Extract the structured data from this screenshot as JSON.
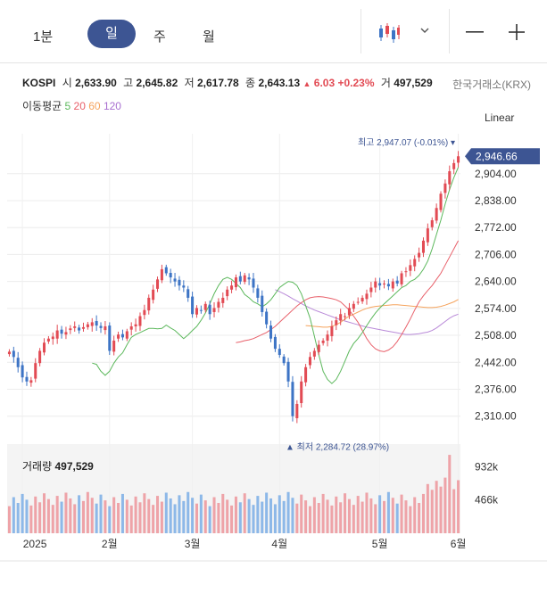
{
  "toolbar": {
    "tabs": [
      "1분",
      "일",
      "주",
      "월"
    ],
    "active_tab": "일",
    "chart_style_icon": "candlestick-icon",
    "dropdown_icon": "chevron-down-icon",
    "zoom_out_icon": "minus-icon",
    "zoom_in_icon": "plus-icon"
  },
  "quote": {
    "symbol": "KOSPI",
    "open_label": "시",
    "open": "2,633.90",
    "high_label": "고",
    "high": "2,645.82",
    "low_label": "저",
    "low": "2,617.78",
    "close_label": "종",
    "close": "2,643.13",
    "change_arrow": "▲",
    "change": "6.03",
    "change_pct": "+0.23%",
    "volume_label": "거",
    "volume": "497,529",
    "exchange": "한국거래소(KRX)"
  },
  "moving_average": {
    "label": "이동평균",
    "periods": [
      {
        "period": "5",
        "color": "#5cb85c"
      },
      {
        "period": "20",
        "color": "#e8606a"
      },
      {
        "period": "60",
        "color": "#f5a35c"
      },
      {
        "period": "120",
        "color": "#a86fd0"
      }
    ]
  },
  "scale_type": "Linear",
  "colors": {
    "up": "#e24b54",
    "down": "#3d74c5",
    "accent": "#3d5593",
    "vol_up": "#eea3a8",
    "vol_down": "#8db8e8"
  },
  "chart_data": {
    "type": "candlestick",
    "ylim": [
      2270,
      2980
    ],
    "y_ticks": [
      "2,904.00",
      "2,838.00",
      "2,772.00",
      "2,706.00",
      "2,640.00",
      "2,574.00",
      "2,508.00",
      "2,442.00",
      "2,376.00",
      "2,310.00"
    ],
    "y_tick_values": [
      2904,
      2838,
      2772,
      2706,
      2640,
      2574,
      2508,
      2442,
      2376,
      2310
    ],
    "x_labels": [
      "2025",
      "2월",
      "3월",
      "4월",
      "5월",
      "6월"
    ],
    "x_label_index": [
      3,
      23,
      42,
      62,
      85,
      103
    ],
    "last_price_label": "2,946.66",
    "last_price": 2946.66,
    "max_label": "최고 2,947.07 (-0.01%)",
    "max_value": 2947.07,
    "min_label": "최저 2,284.72 (28.97%)",
    "min_value": 2284.72,
    "close": [
      2468,
      2455,
      2430,
      2405,
      2395,
      2398,
      2440,
      2470,
      2490,
      2500,
      2505,
      2520,
      2512,
      2516,
      2525,
      2530,
      2520,
      2528,
      2535,
      2540,
      2532,
      2526,
      2530,
      2470,
      2495,
      2510,
      2503,
      2518,
      2530,
      2535,
      2555,
      2570,
      2600,
      2620,
      2645,
      2670,
      2660,
      2650,
      2640,
      2630,
      2625,
      2600,
      2560,
      2575,
      2568,
      2585,
      2560,
      2575,
      2590,
      2600,
      2620,
      2630,
      2650,
      2640,
      2655,
      2645,
      2625,
      2600,
      2565,
      2535,
      2500,
      2475,
      2460,
      2440,
      2395,
      2310,
      2340,
      2395,
      2430,
      2455,
      2470,
      2485,
      2495,
      2510,
      2530,
      2545,
      2560,
      2555,
      2575,
      2585,
      2590,
      2600,
      2610,
      2625,
      2640,
      2630,
      2635,
      2628,
      2640,
      2635,
      2660,
      2665,
      2680,
      2695,
      2710,
      2740,
      2770,
      2790,
      2820,
      2855,
      2880,
      2910,
      2930,
      2946.66
    ],
    "ma": {
      "5": [
        2440,
        2437,
        2420,
        2410,
        2420,
        2440,
        2455,
        2465,
        2485,
        2503,
        2510,
        2515,
        2520,
        2525,
        2525,
        2524,
        2525,
        2533,
        2526,
        2520,
        2510,
        2500,
        2509,
        2520,
        2530,
        2545,
        2563,
        2585,
        2610,
        2630,
        2645,
        2650,
        2645,
        2635,
        2625,
        2608,
        2600,
        2590,
        2585,
        2578,
        2585,
        2595,
        2610,
        2625,
        2633,
        2640,
        2638,
        2630,
        2610,
        2580,
        2550,
        2505,
        2460,
        2420,
        2400,
        2390,
        2400,
        2420,
        2445,
        2470,
        2488,
        2500,
        2515,
        2532,
        2548,
        2563,
        2575,
        2585,
        2595,
        2605,
        2615,
        2625,
        2630,
        2640,
        2645,
        2655,
        2670,
        2690,
        2720,
        2755,
        2790,
        2830,
        2865,
        2895,
        2920
      ],
      "5_offset": 19,
      "20": [
        2490,
        2492,
        2495,
        2497,
        2500,
        2505,
        2510,
        2515,
        2522,
        2530,
        2540,
        2550,
        2560,
        2570,
        2580,
        2588,
        2595,
        2600,
        2602,
        2603,
        2602,
        2600,
        2598,
        2595,
        2590,
        2580,
        2570,
        2555,
        2540,
        2520,
        2500,
        2485,
        2475,
        2470,
        2468,
        2472,
        2480,
        2493,
        2510,
        2528,
        2548,
        2570,
        2590,
        2605,
        2618,
        2630,
        2645,
        2660,
        2680,
        2700,
        2720,
        2740
      ],
      "20_offset": 52,
      "60": [
        2532,
        2531,
        2530,
        2529,
        2528,
        2528,
        2530,
        2534,
        2540,
        2548,
        2555,
        2560,
        2565,
        2570,
        2574,
        2577,
        2579,
        2580,
        2581,
        2582,
        2583,
        2583,
        2582,
        2581,
        2580,
        2579,
        2578,
        2577,
        2576,
        2576,
        2577,
        2579,
        2582,
        2586,
        2590,
        2596
      ],
      "60_offset": 68,
      "120": [
        2620,
        2615,
        2610,
        2604,
        2598,
        2592,
        2586,
        2580,
        2575,
        2570,
        2566,
        2562,
        2558,
        2554,
        2550,
        2546,
        2543,
        2540,
        2537,
        2534,
        2531,
        2528,
        2526,
        2524,
        2522,
        2520,
        2518,
        2516,
        2514,
        2512,
        2510,
        2510,
        2511,
        2512,
        2514,
        2516,
        2520,
        2526,
        2534,
        2542,
        2550,
        2556,
        2560
      ],
      "120_offset": 61
    },
    "volume": {
      "title": "거래량",
      "last": "497,529",
      "y_ticks": [
        "932k",
        "466k"
      ],
      "y_tick_values": [
        932000,
        466000
      ]
    }
  }
}
